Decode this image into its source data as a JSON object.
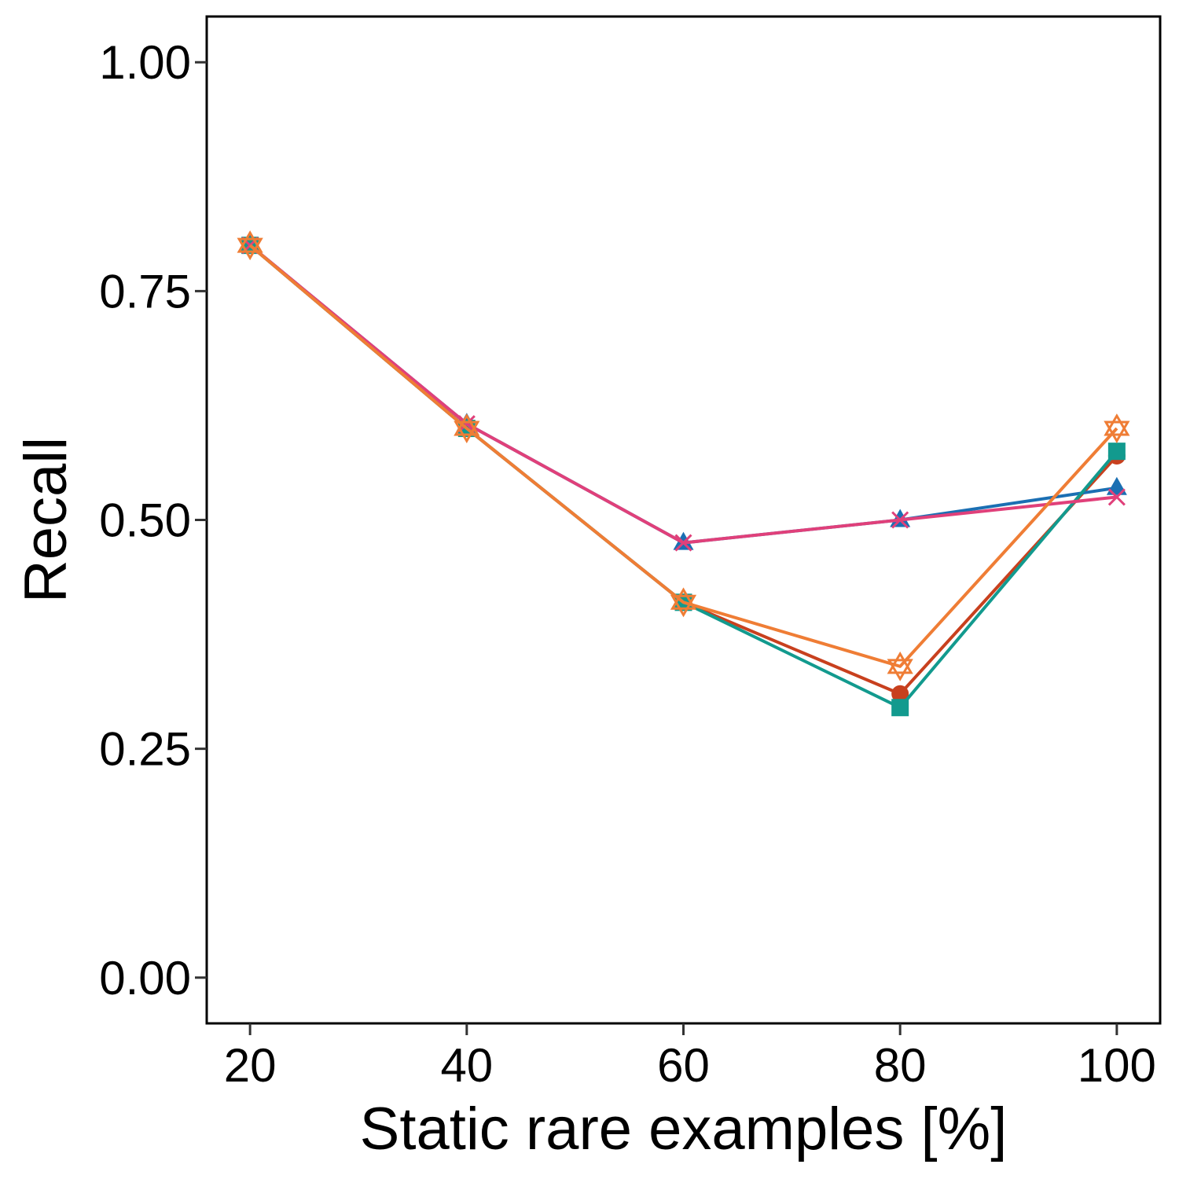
{
  "chart_data": {
    "type": "line",
    "title": "",
    "xlabel": "Static rare examples [%]",
    "ylabel": "Recall",
    "x": [
      20,
      40,
      60,
      80,
      100
    ],
    "xlim": [
      16,
      104
    ],
    "ylim": [
      -0.05,
      1.05
    ],
    "x_ticks": [
      20,
      40,
      60,
      80,
      100
    ],
    "y_ticks": [
      0.0,
      0.25,
      0.5,
      0.75,
      1.0
    ],
    "x_tick_labels": [
      "20",
      "40",
      "60",
      "80",
      "100"
    ],
    "y_tick_labels": [
      "0.00",
      "0.25",
      "0.50",
      "0.75",
      "1.00"
    ],
    "grid": false,
    "legend": "none",
    "series": [
      {
        "marker": "circle",
        "color": "#c8401e",
        "values": [
          0.8,
          0.6,
          0.41,
          0.31,
          0.57
        ]
      },
      {
        "marker": "triangle",
        "color": "#1b6fb3",
        "values": [
          0.8,
          0.605,
          0.475,
          0.5,
          0.535
        ]
      },
      {
        "marker": "square",
        "color": "#129a8e",
        "values": [
          0.8,
          0.6,
          0.41,
          0.295,
          0.575
        ]
      },
      {
        "marker": "cross",
        "color": "#e0407a",
        "values": [
          0.8,
          0.605,
          0.475,
          0.5,
          0.525
        ]
      },
      {
        "marker": "star",
        "color": "#ef7d35",
        "values": [
          0.8,
          0.6,
          0.41,
          0.34,
          0.6
        ]
      }
    ]
  }
}
